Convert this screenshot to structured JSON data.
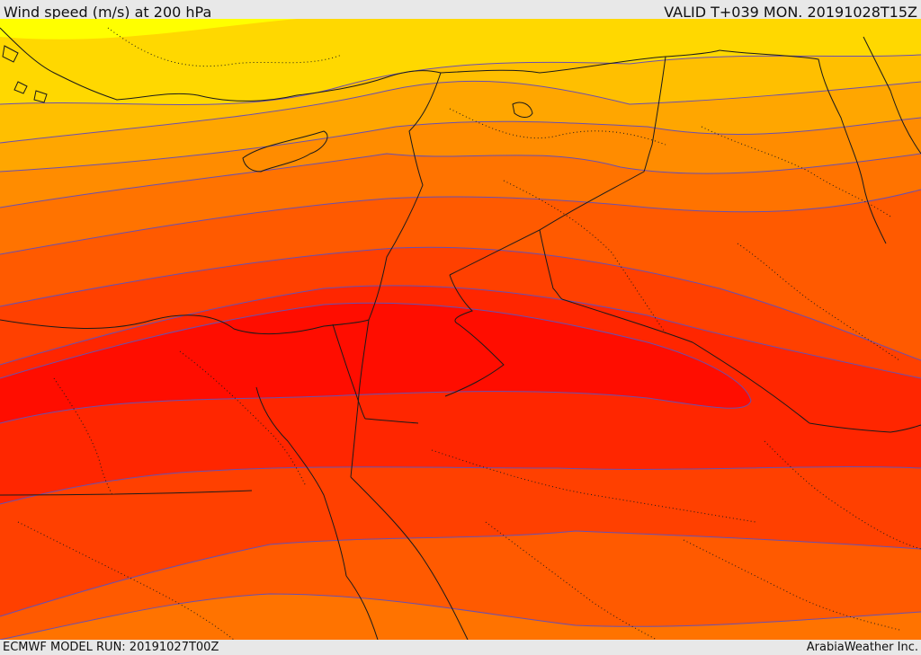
{
  "header": {
    "title": "Wind speed (m/s) at 200 hPa",
    "valid_time": "VALID T+039 MON. 20191028T15Z"
  },
  "footer": {
    "model_run": "ECMWF MODEL RUN: 20191027T00Z",
    "credit": "ArabiaWeather Inc."
  },
  "map": {
    "field": "wind-speed-200hPa",
    "palette": [
      "#ffff00",
      "#ffd800",
      "#ffbf00",
      "#ffa600",
      "#ff8c00",
      "#ff7300",
      "#ff5a00",
      "#ff4000",
      "#ff2600",
      "#ff0d00"
    ],
    "contour_color": "#6a4fb0",
    "coastline_color": "#1a1a1a"
  }
}
